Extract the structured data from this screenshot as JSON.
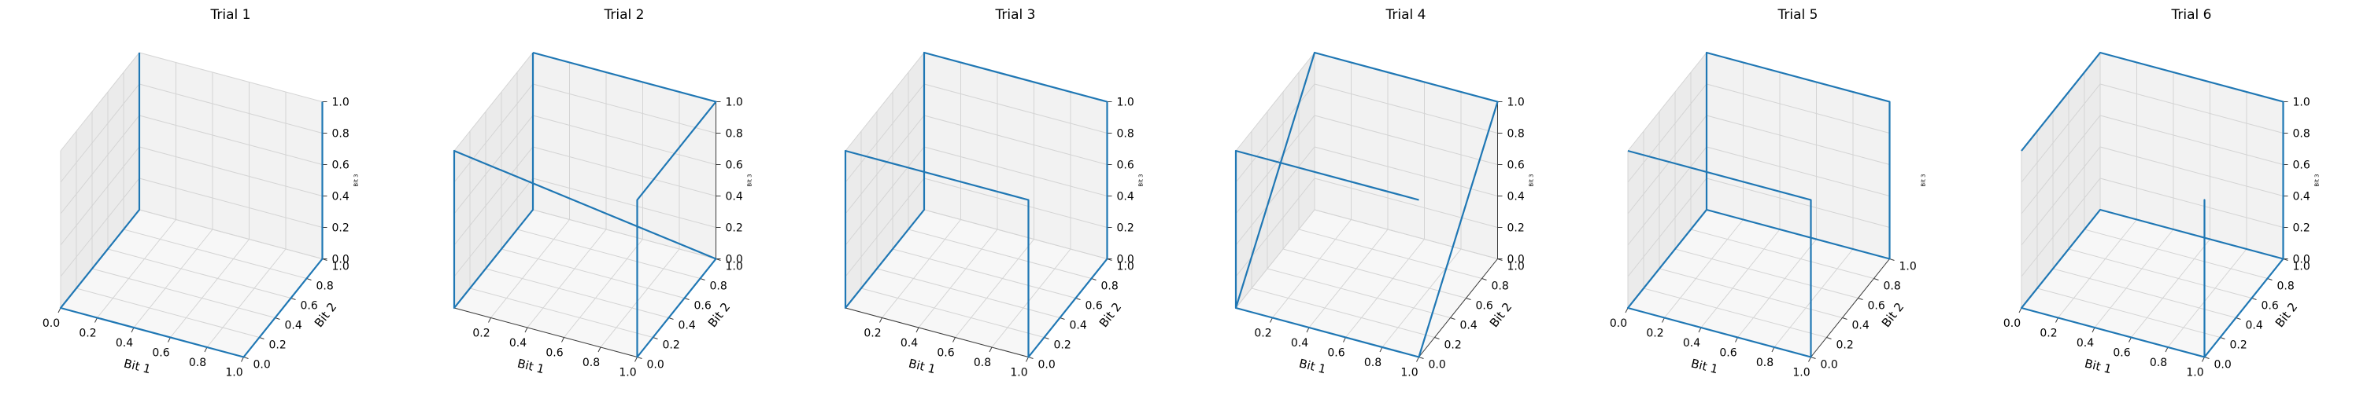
{
  "figure": {
    "background": "#ffffff",
    "pane_colors": {
      "left_wall": "#ebebeb",
      "back_wall": "#f2f2f2",
      "floor": "#f7f7f7"
    },
    "grid_color": "#d4d4d4",
    "line_color": "#1f77b4"
  },
  "chart_data": [
    {
      "type": "line3d",
      "title": "Trial 1",
      "xlabel": "Bit 1",
      "ylabel": "Bit 2",
      "zlabel": "Bit 3",
      "xlim": [
        0,
        1
      ],
      "ylim": [
        0,
        1
      ],
      "zlim": [
        0,
        1
      ],
      "xticks": [
        "0.0",
        "0.2",
        "0.4",
        "0.6",
        "0.8",
        "1.0"
      ],
      "yticks": [
        "0.0",
        "0.2",
        "0.4",
        "0.6",
        "0.8",
        "1.0"
      ],
      "zticks": [
        "0.0",
        "0.2",
        "0.4",
        "0.6",
        "0.8",
        "1.0"
      ],
      "grid": true,
      "points": [
        [
          0,
          1,
          1
        ],
        [
          0,
          1,
          0
        ],
        [
          0,
          0,
          0
        ],
        [
          1,
          0,
          0
        ],
        [
          1,
          1,
          0
        ],
        [
          1,
          1,
          1
        ]
      ]
    },
    {
      "type": "line3d",
      "title": "Trial 2",
      "xlabel": "Bit 1",
      "ylabel": "Bit 2",
      "zlabel": "Bit 3",
      "xlim": [
        0,
        1
      ],
      "ylim": [
        0,
        1
      ],
      "zlim": [
        0,
        1
      ],
      "xticks": [
        "0.2",
        "0.4",
        "0.6",
        "0.8",
        "1.0"
      ],
      "yticks": [
        "0.0",
        "0.2",
        "0.4",
        "0.6",
        "0.8",
        "1.0"
      ],
      "zticks": [
        "0.0",
        "0.2",
        "0.4",
        "0.6",
        "0.8",
        "1.0"
      ],
      "grid": true,
      "points": [
        [
          0,
          1,
          1
        ],
        [
          0,
          1,
          0
        ],
        [
          0,
          0,
          0
        ],
        [
          0,
          0,
          1
        ],
        [
          1,
          1,
          0
        ],
        [
          1,
          0,
          0
        ],
        [
          1,
          0,
          1
        ],
        [
          1,
          1,
          1
        ],
        [
          0,
          1,
          1
        ]
      ]
    },
    {
      "type": "line3d",
      "title": "Trial 3",
      "xlabel": "Bit 1",
      "ylabel": "Bit 2",
      "zlabel": "Bit 3",
      "xlim": [
        0,
        1
      ],
      "ylim": [
        0,
        1
      ],
      "zlim": [
        0,
        1
      ],
      "xticks": [
        "0.2",
        "0.4",
        "0.6",
        "0.8",
        "1.0"
      ],
      "yticks": [
        "0.0",
        "0.2",
        "0.4",
        "0.6",
        "0.8",
        "1.0"
      ],
      "zticks": [
        "0.0",
        "0.2",
        "0.4",
        "0.6",
        "0.8",
        "1.0"
      ],
      "grid": true,
      "points": [
        [
          1,
          1,
          1
        ],
        [
          0,
          1,
          1
        ],
        [
          0,
          1,
          0
        ],
        [
          0,
          0,
          0
        ],
        [
          0,
          0,
          1
        ],
        [
          1,
          0,
          1
        ],
        [
          1,
          0,
          0
        ],
        [
          1,
          1,
          0
        ],
        [
          1,
          1,
          1
        ]
      ]
    },
    {
      "type": "line3d",
      "title": "Trial 4",
      "xlabel": "Bit 1",
      "ylabel": "Bit 2",
      "zlabel": "Bit 3",
      "xlim": [
        0,
        1
      ],
      "ylim": [
        0,
        1
      ],
      "zlim": [
        0,
        1
      ],
      "xticks": [
        "0.2",
        "0.4",
        "0.6",
        "0.8",
        "1.0"
      ],
      "yticks": [
        "0.0",
        "0.2",
        "0.4",
        "0.6",
        "0.8",
        "1.0"
      ],
      "zticks": [
        "0.0",
        "0.2",
        "0.4",
        "0.6",
        "0.8",
        "1.0"
      ],
      "grid": true,
      "points": [
        [
          1,
          0,
          1
        ],
        [
          0,
          0,
          1
        ],
        [
          0,
          0,
          0
        ],
        [
          0,
          1,
          1
        ],
        [
          1,
          1,
          1
        ],
        [
          1,
          0,
          0
        ],
        [
          0,
          0,
          0
        ]
      ]
    },
    {
      "type": "line3d",
      "title": "Trial 5",
      "xlabel": "Bit 1",
      "ylabel": "Bit 2",
      "zlabel": "Bit 3",
      "xlim": [
        0,
        1
      ],
      "ylim": [
        0,
        1
      ],
      "zlim": [
        0,
        1
      ],
      "xticks": [
        "0.0",
        "0.2",
        "0.4",
        "0.6",
        "0.8",
        "1.0"
      ],
      "yticks": [
        "0.0",
        "0.2",
        "0.4",
        "0.6",
        "0.8",
        "1.0"
      ],
      "zticks": [],
      "grid": true,
      "points": [
        [
          0,
          0,
          1
        ],
        [
          1,
          0,
          1
        ],
        [
          1,
          0,
          0
        ],
        [
          0,
          0,
          0
        ],
        [
          0,
          1,
          0
        ],
        [
          1,
          1,
          0
        ],
        [
          1,
          1,
          1
        ],
        [
          0,
          1,
          1
        ],
        [
          0,
          1,
          0
        ]
      ]
    },
    {
      "type": "line3d",
      "title": "Trial 6",
      "xlabel": "Bit 1",
      "ylabel": "Bit 2",
      "zlabel": "Bit 3",
      "xlim": [
        0,
        1
      ],
      "ylim": [
        0,
        1
      ],
      "zlim": [
        0,
        1
      ],
      "xticks": [
        "0.0",
        "0.2",
        "0.4",
        "0.6",
        "0.8",
        "1.0"
      ],
      "yticks": [
        "0.0",
        "0.2",
        "0.4",
        "0.6",
        "0.8",
        "1.0"
      ],
      "zticks": [
        "0.0",
        "0.2",
        "0.4",
        "0.6",
        "0.8",
        "1.0"
      ],
      "grid": true,
      "points": [
        [
          0,
          0,
          1
        ],
        [
          0,
          1,
          1
        ],
        [
          1,
          1,
          1
        ],
        [
          1,
          1,
          0
        ],
        [
          1,
          0,
          0
        ],
        [
          1,
          0,
          1
        ],
        [
          1,
          0,
          0
        ],
        [
          0,
          0,
          0
        ],
        [
          0,
          1,
          0
        ],
        [
          1,
          1,
          0
        ]
      ]
    }
  ]
}
